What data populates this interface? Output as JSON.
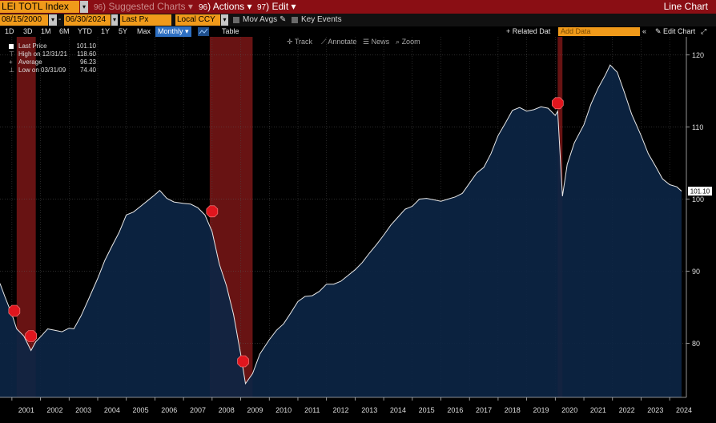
{
  "toolbar": {
    "ticker": "LEI TOTL Index",
    "suggested_charts_label": "Suggested Charts",
    "suggested_charts_num": "96",
    "actions_label": "Actions",
    "actions_num": "96",
    "edit_label": "Edit",
    "edit_num": "97",
    "chart_type": "Line Chart"
  },
  "controls": {
    "start_date": "08/15/2000",
    "end_date": "06/30/2024",
    "field": "Last Px",
    "currency": "Local CCY",
    "mov_avgs": "Mov Avgs",
    "key_events": "Key Events"
  },
  "ranges": [
    "1D",
    "3D",
    "1M",
    "6M",
    "YTD",
    "1Y",
    "5Y",
    "Max"
  ],
  "frequency": "Monthly",
  "table_label": "Table",
  "related_data_label": "+ Related Dat",
  "add_data_placeholder": "Add Data",
  "edit_chart_label": "Edit Chart",
  "annotations": {
    "track": "Track",
    "annotate": "Annotate",
    "news": "News",
    "zoom": "Zoom"
  },
  "legend": {
    "last_price_label": "Last Price",
    "last_price_value": "101.10",
    "high_label": "High on 12/31/21",
    "high_value": "118.60",
    "average_label": "Average",
    "average_value": "96.23",
    "low_label": "Low on 03/31/09",
    "low_value": "74.40"
  },
  "colors": {
    "line": "#e8e8e8",
    "area": "#0c2544",
    "recession": "#8b1a1a",
    "last_marker": "#ffffff"
  },
  "chart_data": {
    "type": "area",
    "series": [
      {
        "name": "Last Price",
        "x": [
          "2000-08",
          "2000-10",
          "2001-01",
          "2001-03",
          "2001-06",
          "2001-09",
          "2001-11",
          "2002-01",
          "2002-04",
          "2002-07",
          "2002-10",
          "2003-01",
          "2003-03",
          "2003-06",
          "2003-09",
          "2004-01",
          "2004-04",
          "2004-07",
          "2004-10",
          "2005-01",
          "2005-04",
          "2005-07",
          "2005-10",
          "2006-01",
          "2006-03",
          "2006-06",
          "2006-09",
          "2007-01",
          "2007-04",
          "2007-07",
          "2007-10",
          "2008-01",
          "2008-04",
          "2008-07",
          "2008-10",
          "2009-01",
          "2009-03",
          "2009-06",
          "2009-09",
          "2010-01",
          "2010-04",
          "2010-07",
          "2010-10",
          "2011-01",
          "2011-04",
          "2011-07",
          "2011-10",
          "2012-01",
          "2012-04",
          "2012-07",
          "2012-10",
          "2013-01",
          "2013-04",
          "2013-07",
          "2013-10",
          "2014-01",
          "2014-04",
          "2014-07",
          "2014-10",
          "2015-01",
          "2015-04",
          "2015-07",
          "2015-10",
          "2016-01",
          "2016-04",
          "2016-07",
          "2016-10",
          "2017-01",
          "2017-04",
          "2017-07",
          "2017-10",
          "2018-01",
          "2018-04",
          "2018-07",
          "2018-10",
          "2019-01",
          "2019-04",
          "2019-07",
          "2019-10",
          "2020-01",
          "2020-02",
          "2020-04",
          "2020-06",
          "2020-09",
          "2021-01",
          "2021-04",
          "2021-07",
          "2021-10",
          "2021-12",
          "2022-03",
          "2022-06",
          "2022-09",
          "2023-01",
          "2023-04",
          "2023-07",
          "2023-10",
          "2024-01",
          "2024-04",
          "2024-06"
        ],
        "values": [
          88.3,
          86.5,
          84.0,
          82.0,
          81.0,
          79.0,
          80.2,
          80.9,
          82.0,
          81.8,
          81.6,
          82.1,
          82.0,
          83.8,
          86.0,
          89.0,
          91.5,
          93.5,
          95.4,
          97.8,
          98.2,
          99.0,
          99.8,
          100.6,
          101.2,
          100.1,
          99.6,
          99.4,
          99.3,
          98.8,
          97.8,
          95.5,
          91.0,
          88.0,
          84.0,
          78.5,
          74.4,
          75.8,
          78.5,
          80.5,
          81.8,
          82.7,
          84.2,
          85.8,
          86.5,
          86.6,
          87.2,
          88.2,
          88.2,
          88.6,
          89.4,
          90.2,
          91.2,
          92.5,
          93.7,
          95.0,
          96.4,
          97.5,
          98.6,
          99.0,
          100.0,
          100.1,
          99.9,
          99.7,
          100.0,
          100.3,
          100.8,
          102.2,
          103.6,
          104.4,
          106.3,
          108.8,
          110.5,
          112.3,
          112.7,
          112.2,
          112.4,
          112.8,
          112.6,
          111.6,
          112.2,
          100.4,
          104.8,
          107.8,
          110.3,
          113.2,
          115.4,
          117.2,
          118.6,
          117.6,
          114.8,
          111.8,
          108.8,
          106.3,
          104.6,
          102.8,
          102.0,
          101.7,
          101.1
        ]
      }
    ],
    "recessions": [
      [
        "2001-03",
        "2001-11"
      ],
      [
        "2007-12",
        "2009-06"
      ],
      [
        "2020-02",
        "2020-04"
      ]
    ],
    "event_markers": [
      {
        "date": "2001-02",
        "value": 84.5
      },
      {
        "date": "2001-09",
        "value": 81.0
      },
      {
        "date": "2008-01",
        "value": 98.3
      },
      {
        "date": "2009-02",
        "value": 77.5
      },
      {
        "date": "2020-02",
        "value": 113.3
      }
    ],
    "x_tick_labels": [
      "2001",
      "2002",
      "2003",
      "2004",
      "2005",
      "2006",
      "2007",
      "2008",
      "2009",
      "2010",
      "2011",
      "2012",
      "2013",
      "2014",
      "2015",
      "2016",
      "2017",
      "2018",
      "2019",
      "2020",
      "2021",
      "2022",
      "2023",
      "2024"
    ],
    "y_ticks": [
      80,
      90,
      100,
      110,
      120
    ],
    "xlim": [
      "2000-08",
      "2024-08"
    ],
    "ylim": [
      72.5,
      122.5
    ],
    "last_value_label": "101.10",
    "grid": true
  }
}
